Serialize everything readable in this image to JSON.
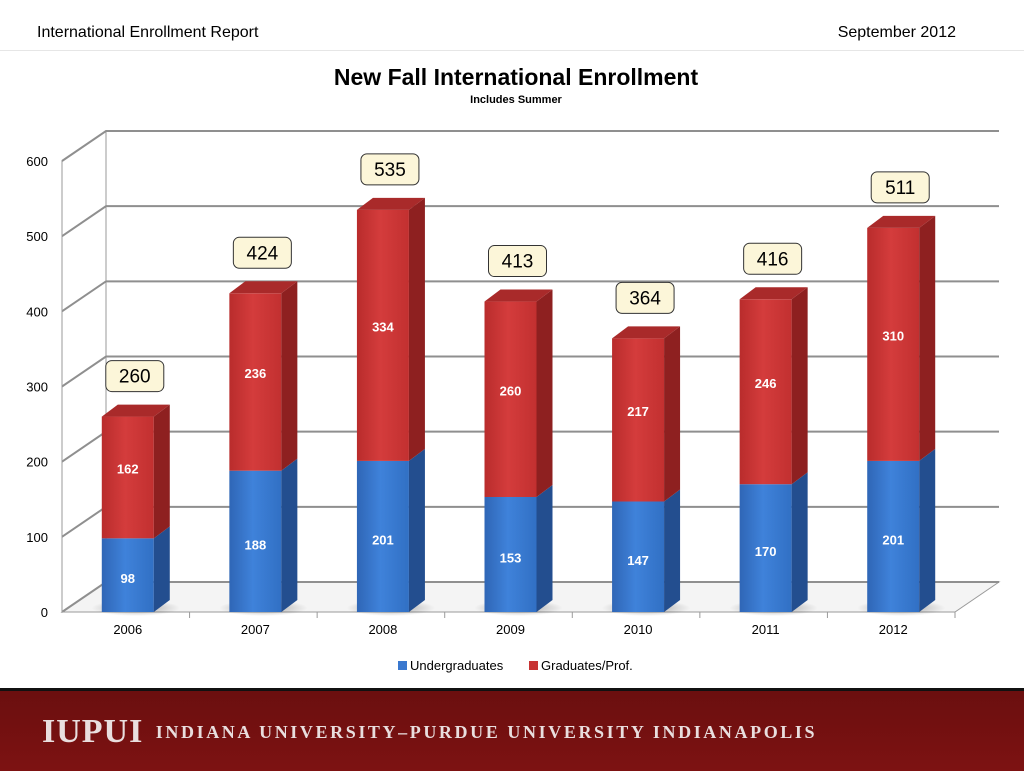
{
  "header": {
    "left": "International Enrollment Report",
    "right": "September 2012"
  },
  "footer": {
    "logo_mark": "IUPUI",
    "logo_text": "INDIANA UNIVERSITY–PURDUE UNIVERSITY INDIANAPOLIS"
  },
  "chart_data": {
    "type": "bar",
    "stacked": true,
    "title": "New Fall International Enrollment",
    "subtitle": "Includes Summer",
    "categories": [
      "2006",
      "2007",
      "2008",
      "2009",
      "2010",
      "2011",
      "2012"
    ],
    "series": [
      {
        "name": "Undergraduates",
        "values": [
          98,
          188,
          201,
          153,
          147,
          170,
          201
        ],
        "color": "#3a78cf"
      },
      {
        "name": "Graduates/Prof.",
        "values": [
          162,
          236,
          334,
          260,
          217,
          246,
          310
        ],
        "color": "#c83434"
      }
    ],
    "totals": [
      260,
      424,
      535,
      413,
      364,
      416,
      511
    ],
    "yticks": [
      0,
      100,
      200,
      300,
      400,
      500,
      600
    ],
    "ylim": [
      0,
      600
    ],
    "legend": "bottom",
    "grid": true
  }
}
